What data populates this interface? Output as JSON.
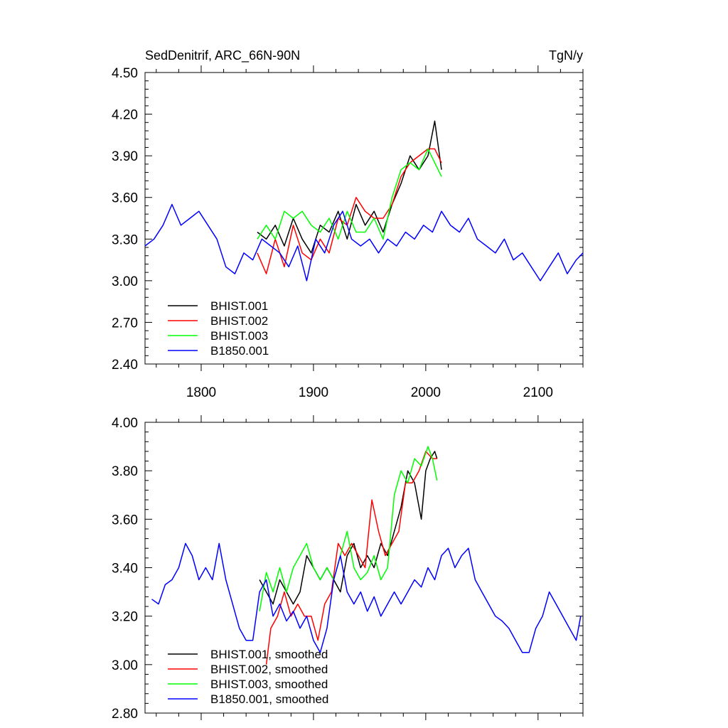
{
  "panels": {
    "top": {
      "left_title": "SedDenitrif, ARC_66N-90N",
      "right_title": "TgN/y"
    }
  },
  "colors": {
    "BHIST.001": "#000000",
    "BHIST.002": "#ff0000",
    "BHIST.003": "#00ff00",
    "B1850.001": "#0000ff"
  },
  "chart_data": [
    {
      "type": "line",
      "title": "SedDenitrif, ARC_66N-90N",
      "units": "TgN/y",
      "xlim": [
        1750,
        2140
      ],
      "ylim": [
        2.4,
        4.5
      ],
      "x_ticks": [
        1800,
        1900,
        2000,
        2100
      ],
      "x_tick_labels": [
        "1800",
        "1900",
        "2000",
        "2100"
      ],
      "y_ticks": [
        2.4,
        2.7,
        3.0,
        3.3,
        3.6,
        3.9,
        4.2,
        4.5
      ],
      "y_tick_labels": [
        "2.40",
        "2.70",
        "3.00",
        "3.30",
        "3.60",
        "3.90",
        "4.20",
        "4.50"
      ],
      "grid": false,
      "legend_position": "bottom-left",
      "series": [
        {
          "name": "BHIST.001",
          "color": "#000000",
          "x": [
            1850,
            1858,
            1866,
            1874,
            1882,
            1890,
            1898,
            1906,
            1914,
            1922,
            1930,
            1938,
            1946,
            1954,
            1962,
            1970,
            1978,
            1986,
            1994,
            2002,
            2008,
            2014
          ],
          "y": [
            3.35,
            3.3,
            3.4,
            3.25,
            3.45,
            3.3,
            3.2,
            3.4,
            3.35,
            3.5,
            3.3,
            3.55,
            3.4,
            3.5,
            3.35,
            3.55,
            3.7,
            3.9,
            3.8,
            3.9,
            4.15,
            3.8
          ]
        },
        {
          "name": "BHIST.002",
          "color": "#ff0000",
          "x": [
            1850,
            1858,
            1866,
            1874,
            1882,
            1890,
            1898,
            1906,
            1914,
            1922,
            1930,
            1938,
            1946,
            1954,
            1962,
            1970,
            1978,
            1986,
            1994,
            2002,
            2008,
            2014
          ],
          "y": [
            3.2,
            3.05,
            3.3,
            3.1,
            3.4,
            3.2,
            3.15,
            3.3,
            3.2,
            3.45,
            3.4,
            3.6,
            3.5,
            3.45,
            3.45,
            3.55,
            3.75,
            3.85,
            3.9,
            3.95,
            3.95,
            3.85
          ]
        },
        {
          "name": "BHIST.003",
          "color": "#00ff00",
          "x": [
            1850,
            1858,
            1866,
            1874,
            1882,
            1890,
            1898,
            1906,
            1914,
            1922,
            1930,
            1938,
            1946,
            1954,
            1962,
            1970,
            1978,
            1986,
            1994,
            2002,
            2008,
            2014
          ],
          "y": [
            3.3,
            3.4,
            3.3,
            3.5,
            3.45,
            3.5,
            3.4,
            3.35,
            3.45,
            3.3,
            3.5,
            3.35,
            3.35,
            3.45,
            3.3,
            3.6,
            3.8,
            3.85,
            3.8,
            3.95,
            3.85,
            3.75
          ]
        },
        {
          "name": "B1850.001",
          "color": "#0000ff",
          "x": [
            1750,
            1758,
            1766,
            1774,
            1782,
            1790,
            1798,
            1806,
            1814,
            1822,
            1830,
            1838,
            1846,
            1854,
            1862,
            1870,
            1878,
            1886,
            1894,
            1902,
            1910,
            1918,
            1926,
            1934,
            1942,
            1950,
            1958,
            1966,
            1974,
            1982,
            1990,
            1998,
            2006,
            2014,
            2022,
            2030,
            2038,
            2046,
            2054,
            2062,
            2070,
            2078,
            2086,
            2094,
            2102,
            2110,
            2118,
            2126,
            2134,
            2140
          ],
          "y": [
            3.25,
            3.3,
            3.4,
            3.55,
            3.4,
            3.45,
            3.5,
            3.4,
            3.3,
            3.1,
            3.05,
            3.2,
            3.15,
            3.3,
            3.25,
            3.2,
            3.1,
            3.25,
            3.0,
            3.3,
            3.2,
            3.4,
            3.5,
            3.3,
            3.25,
            3.3,
            3.2,
            3.3,
            3.25,
            3.35,
            3.3,
            3.4,
            3.35,
            3.5,
            3.4,
            3.35,
            3.45,
            3.3,
            3.25,
            3.2,
            3.3,
            3.15,
            3.2,
            3.1,
            3.0,
            3.1,
            3.2,
            3.05,
            3.15,
            3.2
          ]
        }
      ]
    },
    {
      "type": "line",
      "xlim": [
        1750,
        2140
      ],
      "ylim": [
        2.8,
        4.0
      ],
      "x_ticks": [
        1800,
        1900,
        2000,
        2100
      ],
      "y_ticks": [
        2.8,
        3.0,
        3.2,
        3.4,
        3.6,
        3.8,
        4.0
      ],
      "y_tick_labels": [
        "2.80",
        "3.00",
        "3.20",
        "3.40",
        "3.60",
        "3.80",
        "4.00"
      ],
      "grid": false,
      "legend_position": "bottom-left",
      "series": [
        {
          "name": "BHIST.001, smoothed",
          "color": "#000000",
          "x": [
            1852,
            1858,
            1864,
            1870,
            1876,
            1882,
            1888,
            1894,
            1900,
            1906,
            1912,
            1918,
            1924,
            1930,
            1936,
            1942,
            1948,
            1954,
            1960,
            1966,
            1972,
            1978,
            1984,
            1990,
            1996,
            2000,
            2004,
            2008,
            2010
          ],
          "y": [
            3.35,
            3.3,
            3.25,
            3.35,
            3.3,
            3.25,
            3.3,
            3.45,
            3.4,
            3.35,
            3.4,
            3.35,
            3.3,
            3.45,
            3.5,
            3.4,
            3.45,
            3.4,
            3.5,
            3.45,
            3.55,
            3.65,
            3.8,
            3.75,
            3.6,
            3.8,
            3.85,
            3.88,
            3.85
          ]
        },
        {
          "name": "BHIST.002, smoothed",
          "color": "#ff0000",
          "x": [
            1858,
            1862,
            1868,
            1874,
            1880,
            1886,
            1892,
            1898,
            1904,
            1910,
            1916,
            1922,
            1928,
            1934,
            1940,
            1946,
            1952,
            1958,
            1964,
            1970,
            1976,
            1982,
            1988,
            1994,
            2000,
            2006,
            2010
          ],
          "y": [
            3.0,
            3.15,
            3.2,
            3.3,
            3.2,
            3.25,
            3.2,
            3.2,
            3.1,
            3.25,
            3.3,
            3.5,
            3.45,
            3.5,
            3.45,
            3.4,
            3.68,
            3.55,
            3.45,
            3.5,
            3.55,
            3.75,
            3.75,
            3.8,
            3.88,
            3.85,
            3.85
          ]
        },
        {
          "name": "BHIST.003, smoothed",
          "color": "#00ff00",
          "x": [
            1852,
            1858,
            1864,
            1870,
            1876,
            1882,
            1888,
            1894,
            1900,
            1906,
            1912,
            1918,
            1924,
            1930,
            1936,
            1942,
            1948,
            1954,
            1960,
            1966,
            1972,
            1978,
            1984,
            1990,
            1996,
            2002,
            2006,
            2010
          ],
          "y": [
            3.22,
            3.38,
            3.3,
            3.4,
            3.3,
            3.4,
            3.45,
            3.5,
            3.4,
            3.35,
            3.4,
            3.35,
            3.45,
            3.55,
            3.4,
            3.35,
            3.38,
            3.45,
            3.35,
            3.4,
            3.7,
            3.8,
            3.75,
            3.85,
            3.82,
            3.9,
            3.85,
            3.76
          ]
        },
        {
          "name": "B1850.001, smoothed",
          "color": "#0000ff",
          "x": [
            1756,
            1762,
            1768,
            1774,
            1780,
            1786,
            1792,
            1798,
            1804,
            1810,
            1816,
            1822,
            1828,
            1834,
            1840,
            1846,
            1852,
            1858,
            1864,
            1870,
            1876,
            1882,
            1888,
            1894,
            1900,
            1906,
            1912,
            1918,
            1924,
            1930,
            1936,
            1942,
            1948,
            1954,
            1960,
            1966,
            1972,
            1978,
            1984,
            1990,
            1996,
            2002,
            2008,
            2014,
            2020,
            2026,
            2032,
            2038,
            2044,
            2050,
            2056,
            2062,
            2068,
            2074,
            2080,
            2086,
            2092,
            2098,
            2104,
            2110,
            2116,
            2122,
            2128,
            2134,
            2138
          ],
          "y": [
            3.27,
            3.25,
            3.33,
            3.35,
            3.4,
            3.5,
            3.45,
            3.35,
            3.4,
            3.35,
            3.5,
            3.35,
            3.25,
            3.15,
            3.1,
            3.1,
            3.3,
            3.35,
            3.2,
            3.25,
            3.18,
            3.22,
            3.15,
            3.2,
            3.1,
            3.05,
            3.15,
            3.35,
            3.45,
            3.3,
            3.25,
            3.3,
            3.22,
            3.28,
            3.2,
            3.25,
            3.3,
            3.25,
            3.3,
            3.35,
            3.32,
            3.4,
            3.35,
            3.45,
            3.48,
            3.4,
            3.45,
            3.48,
            3.35,
            3.3,
            3.25,
            3.2,
            3.18,
            3.15,
            3.1,
            3.05,
            3.05,
            3.15,
            3.2,
            3.3,
            3.25,
            3.2,
            3.15,
            3.1,
            3.2
          ]
        }
      ]
    }
  ]
}
